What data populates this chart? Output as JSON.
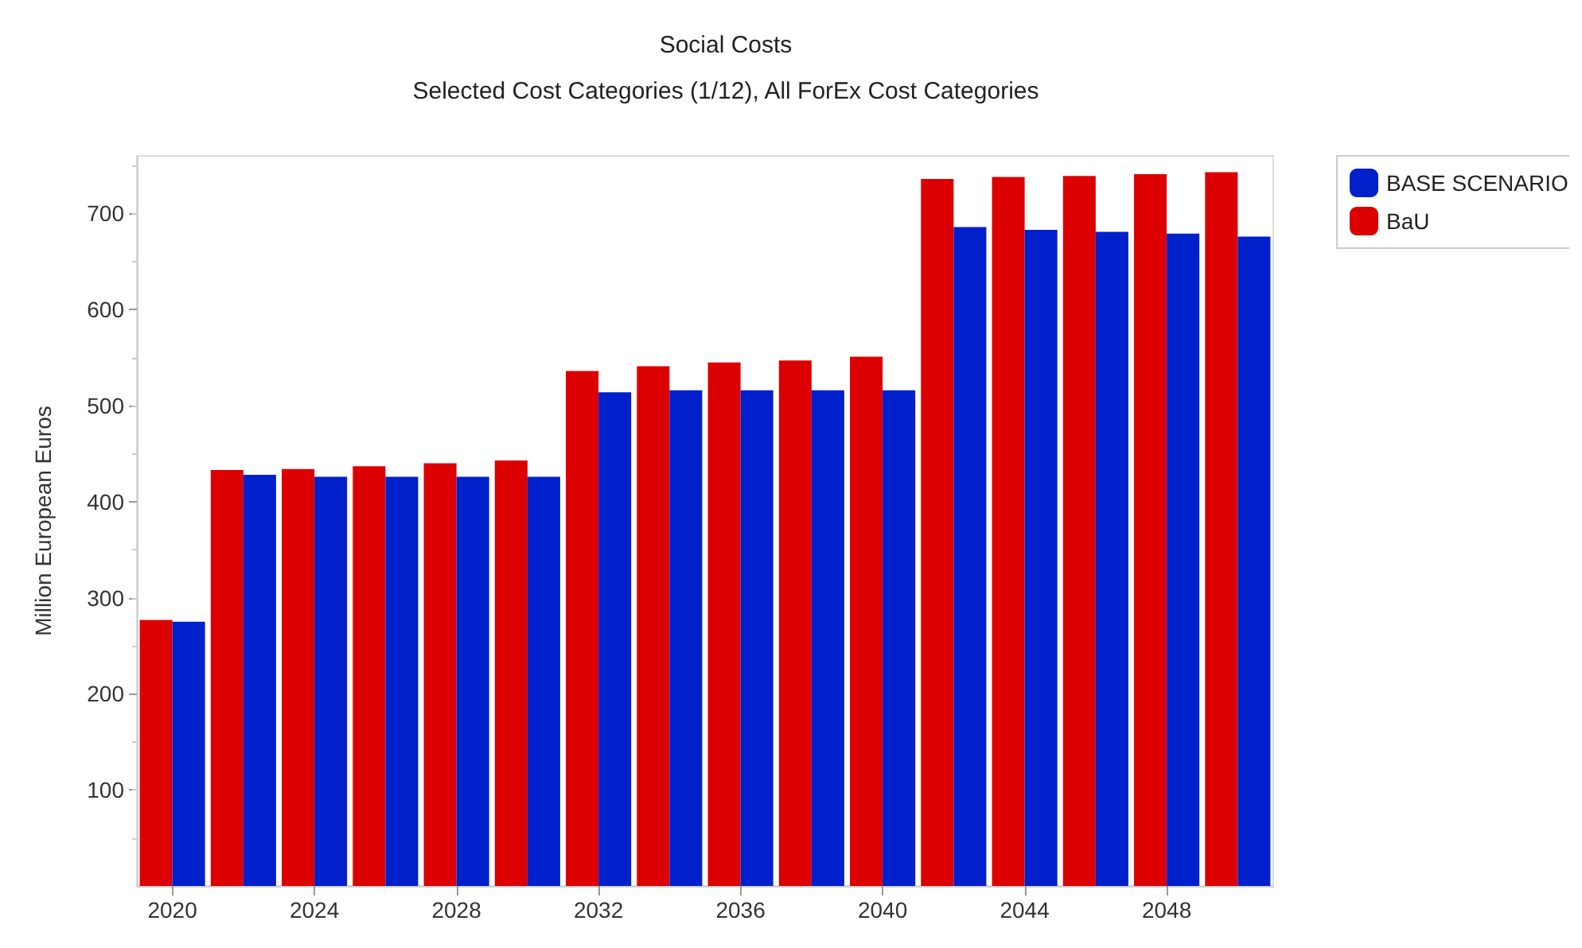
{
  "chart_data": {
    "type": "bar",
    "title": "Social Costs",
    "subtitle": "Selected Cost Categories (1/12), All ForEx Cost Categories",
    "ylabel": "Million European Euros",
    "categories": [
      "2020",
      null,
      "2024",
      null,
      "2028",
      null,
      "2032",
      null,
      "2036",
      null,
      "2040",
      null,
      "2044",
      null,
      "2048",
      null
    ],
    "series": [
      {
        "name": "BaU",
        "color": "#dd0000",
        "values": [
          277,
          433,
          434,
          437,
          440,
          443,
          536,
          541,
          545,
          547,
          551,
          736,
          738,
          739,
          741,
          743
        ]
      },
      {
        "name": "BASE SCENARIO",
        "color": "#0020cc",
        "values": [
          275,
          428,
          426,
          426,
          426,
          426,
          514,
          516,
          516,
          516,
          516,
          686,
          683,
          681,
          679,
          676
        ]
      }
    ],
    "ylim": [
      0,
      760
    ],
    "yticks": [
      100,
      200,
      300,
      400,
      500,
      600,
      700
    ],
    "grid": false,
    "legend": "top right"
  }
}
